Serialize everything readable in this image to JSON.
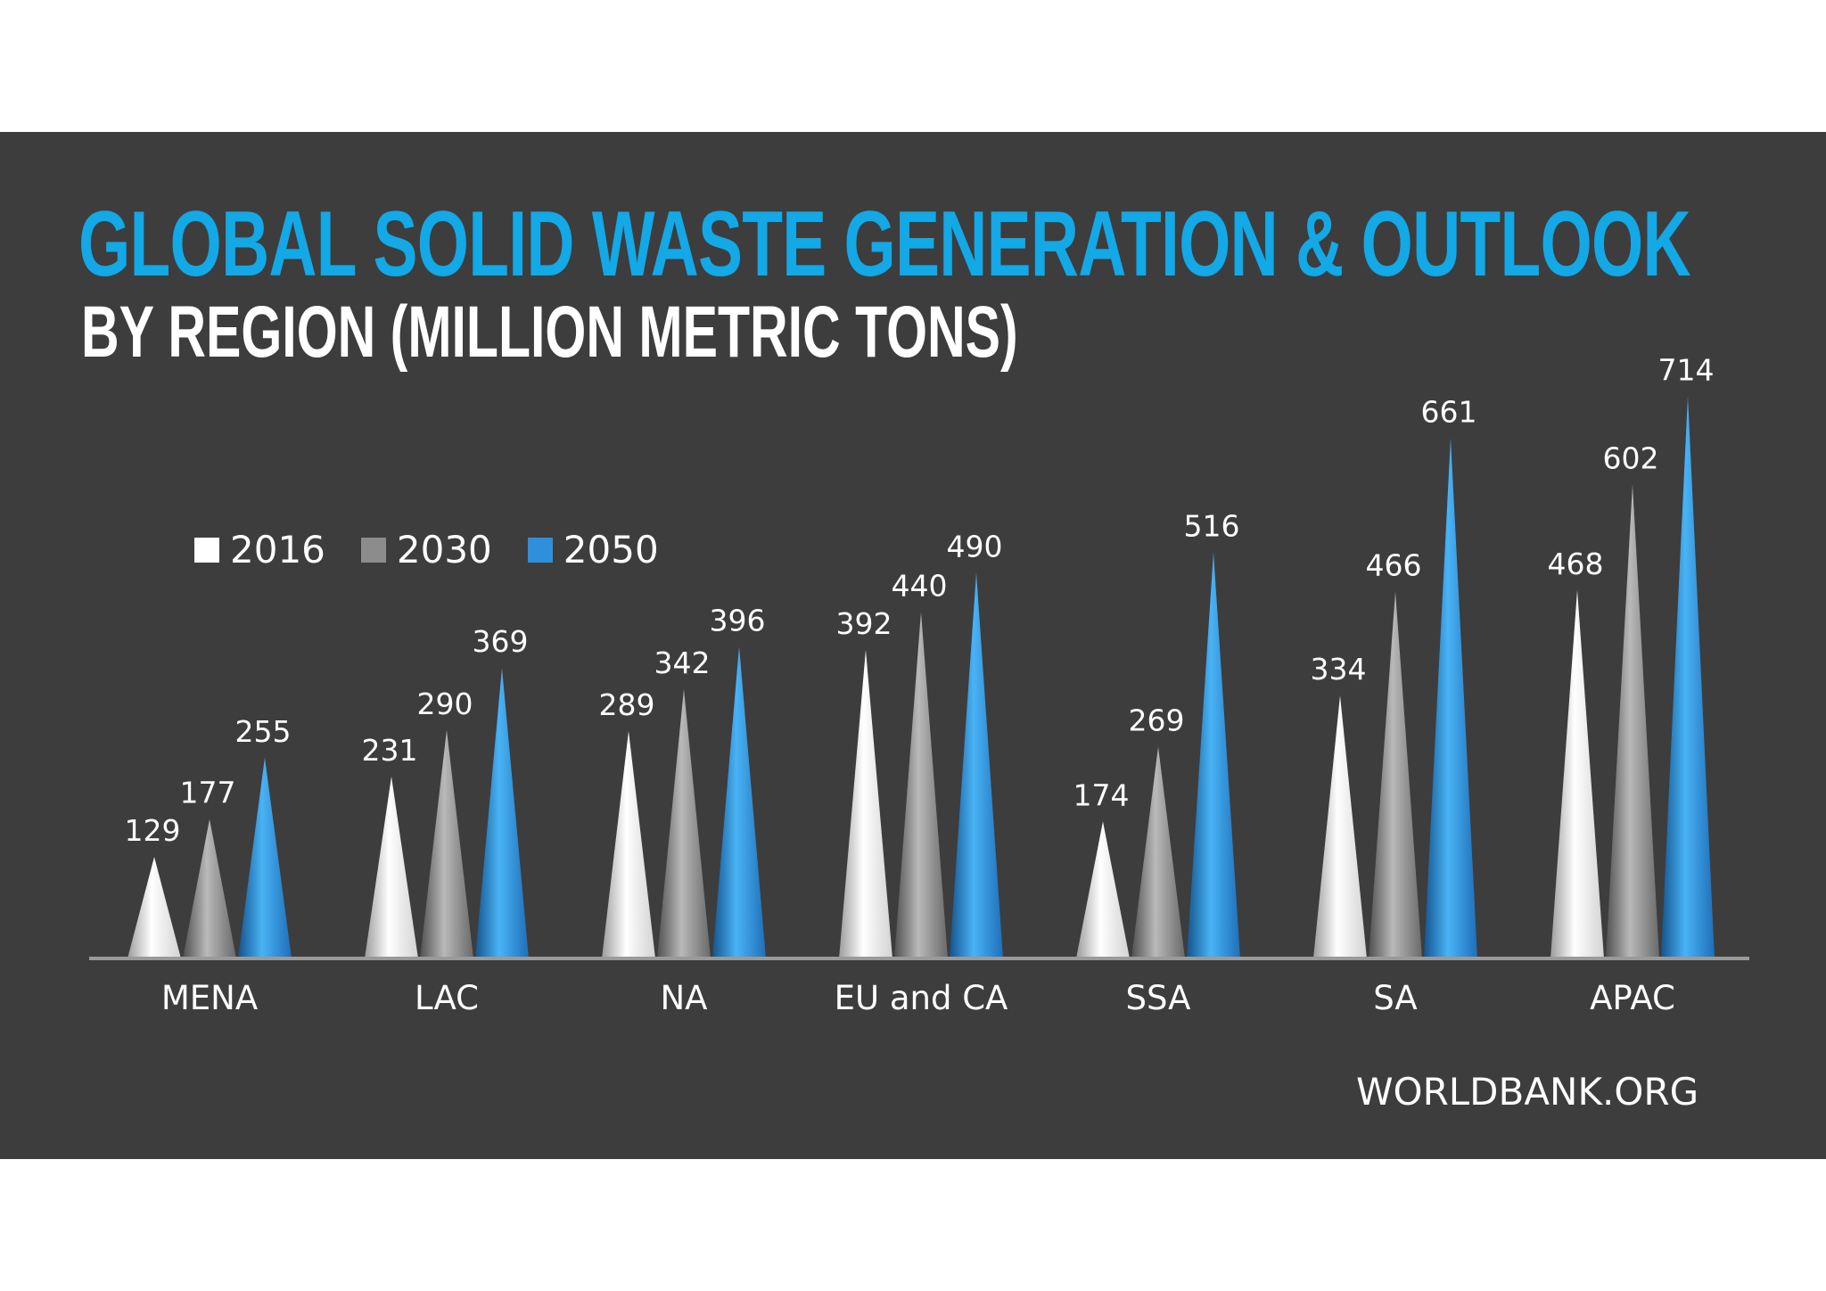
{
  "header": {
    "title": "GLOBAL SOLID WASTE GENERATION & OUTLOOK",
    "subtitle": "BY REGION (MILLION METRIC TONS)"
  },
  "source": "WORLDBANK.ORG",
  "colors": {
    "panel": "#3d3d3d",
    "title": "#13a8e6",
    "text": "#ffffff",
    "axis": "#9a9a9a"
  },
  "chart_data": {
    "type": "bar",
    "title": "GLOBAL SOLID WASTE GENERATION & OUTLOOK",
    "subtitle": "BY REGION (MILLION METRIC TONS)",
    "xlabel": "",
    "ylabel": "",
    "ylim": [
      0,
      714
    ],
    "grid": false,
    "legend_position": "top-left",
    "categories": [
      "MENA",
      "LAC",
      "NA",
      "EU and CA",
      "SSA",
      "SA",
      "APAC"
    ],
    "series": [
      {
        "name": "2016",
        "color": "#ffffff",
        "values": [
          129,
          231,
          289,
          392,
          174,
          334,
          468
        ]
      },
      {
        "name": "2030",
        "color": "#8c8c8c",
        "values": [
          177,
          290,
          342,
          440,
          269,
          466,
          602
        ]
      },
      {
        "name": "2050",
        "color": "#2f8fdb",
        "values": [
          255,
          369,
          396,
          490,
          516,
          661,
          714
        ]
      }
    ]
  }
}
